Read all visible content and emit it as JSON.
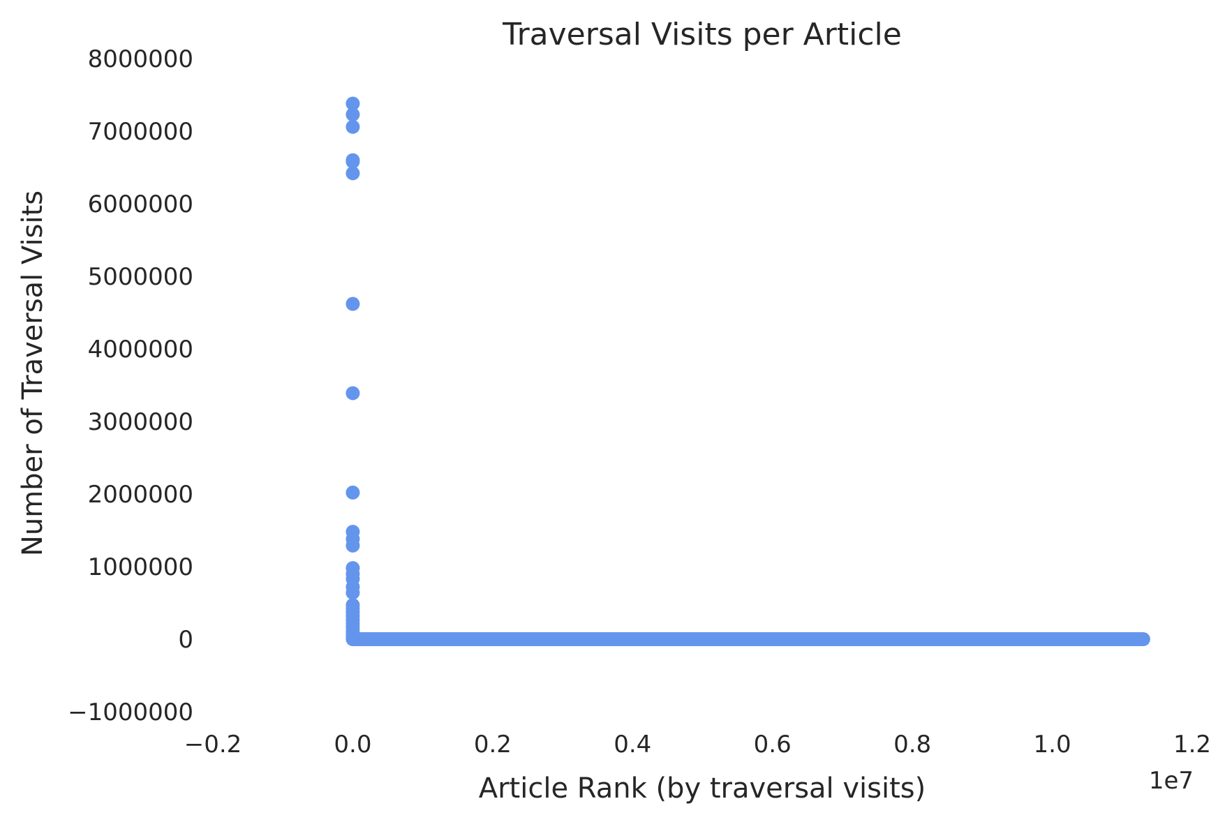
{
  "chart_data": {
    "type": "scatter",
    "title": "Traversal Visits per Article",
    "xlabel": "Article Rank (by traversal visits)",
    "ylabel": "Number of Traversal Visits",
    "x_offset_text": "1e7",
    "xlim": [
      -0.2,
      1.2
    ],
    "ylim": [
      -1000000,
      8000000
    ],
    "x_scale_note": "x values in units of 1e7",
    "xticks": [
      -0.2,
      0.0,
      0.2,
      0.4,
      0.6,
      0.8,
      1.0,
      1.2
    ],
    "xtick_labels": [
      "−0.2",
      "0.0",
      "0.2",
      "0.4",
      "0.6",
      "0.8",
      "1.0",
      "1.2"
    ],
    "yticks": [
      -1000000,
      0,
      1000000,
      2000000,
      3000000,
      4000000,
      5000000,
      6000000,
      7000000,
      8000000
    ],
    "ytick_labels": [
      "−1000000",
      "0",
      "1000000",
      "2000000",
      "3000000",
      "4000000",
      "5000000",
      "6000000",
      "7000000",
      "8000000"
    ],
    "grid": false,
    "color": "#6495ED",
    "series": [
      {
        "points": [
          {
            "x": 0.0,
            "y": 7380000
          },
          {
            "x": 0.0,
            "y": 7230000
          },
          {
            "x": 0.0,
            "y": 7060000
          },
          {
            "x": 0.0,
            "y": 6600000
          },
          {
            "x": 0.0,
            "y": 6580000
          },
          {
            "x": 0.0,
            "y": 6420000
          },
          {
            "x": 0.0,
            "y": 4620000
          },
          {
            "x": 0.0,
            "y": 3390000
          },
          {
            "x": 0.0,
            "y": 2020000
          },
          {
            "x": 0.0,
            "y": 1480000
          },
          {
            "x": 0.0,
            "y": 1380000
          },
          {
            "x": 0.0,
            "y": 1290000
          },
          {
            "x": 0.0,
            "y": 980000
          },
          {
            "x": 0.0,
            "y": 900000
          },
          {
            "x": 0.0,
            "y": 830000
          },
          {
            "x": 0.0,
            "y": 720000
          },
          {
            "x": 0.0,
            "y": 640000
          },
          {
            "x": 0.0,
            "y": 470000
          },
          {
            "x": 0.0,
            "y": 420000
          },
          {
            "x": 0.0,
            "y": 370000
          },
          {
            "x": 0.0,
            "y": 320000
          },
          {
            "x": 0.0,
            "y": 270000
          },
          {
            "x": 0.0,
            "y": 220000
          },
          {
            "x": 0.0,
            "y": 170000
          },
          {
            "x": 0.0,
            "y": 120000
          },
          {
            "x": 0.0,
            "y": 70000
          },
          {
            "x": 0.0,
            "y": 30000
          }
        ],
        "flat_tail": {
          "x_start": 0.0,
          "x_end": 1.13,
          "y": 0
        }
      }
    ]
  }
}
